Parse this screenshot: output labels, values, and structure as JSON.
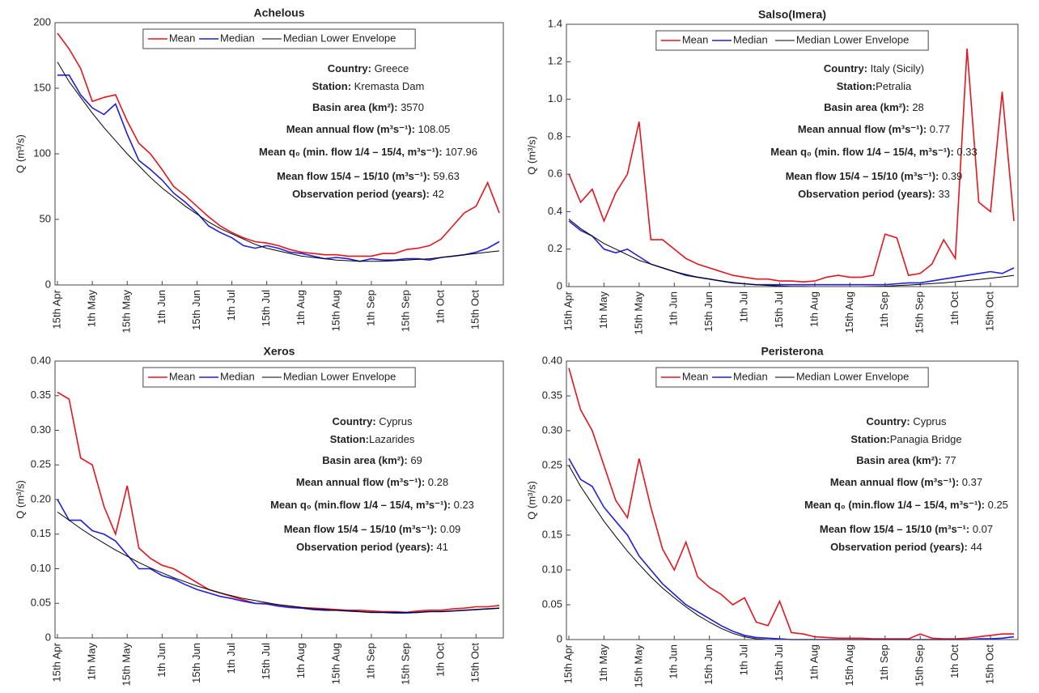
{
  "chart_data": [
    {
      "type": "line",
      "title": "Achelous",
      "ylabel": "Q (m³/s)",
      "legend": "top",
      "categories": [
        "15th Apr",
        null,
        null,
        "1th May",
        null,
        null,
        "15th May",
        null,
        null,
        "1th Jun",
        null,
        null,
        "15th Jun",
        null,
        null,
        "1th Jul",
        null,
        null,
        "15th Jul",
        null,
        null,
        "1th Aug",
        null,
        null,
        "15th Aug",
        null,
        null,
        "1th Sep",
        null,
        null,
        "15th Sep",
        null,
        null,
        "1th Oct",
        null,
        null,
        "15th Oct",
        null,
        null
      ],
      "ylim": [
        0,
        200
      ],
      "yticks": [
        0,
        50,
        100,
        150,
        200
      ],
      "series": [
        {
          "name": "Mean",
          "color": "#e8141c",
          "values": [
            192,
            180,
            165,
            140,
            143,
            145,
            125,
            108,
            100,
            88,
            75,
            68,
            60,
            52,
            45,
            40,
            36,
            33,
            32,
            30,
            27,
            25,
            24,
            23,
            23,
            22,
            22,
            22,
            24,
            24,
            27,
            28,
            30,
            35,
            45,
            55,
            60,
            78,
            55
          ]
        },
        {
          "name": "Median",
          "color": "#1f1fdd",
          "values": [
            160,
            160,
            145,
            135,
            130,
            138,
            115,
            95,
            88,
            80,
            70,
            63,
            55,
            45,
            40,
            36,
            30,
            28,
            30,
            28,
            25,
            24,
            22,
            20,
            21,
            20,
            18,
            20,
            19,
            19,
            20,
            20,
            19,
            21,
            22,
            23,
            25,
            28,
            33
          ]
        },
        {
          "name": "Median Lower Envelope",
          "color": "#000000",
          "values": [
            170,
            155,
            143,
            131,
            120,
            110,
            100,
            91,
            82,
            74,
            67,
            60,
            54,
            48,
            43,
            39,
            35,
            31,
            28,
            26,
            24,
            22,
            21,
            20,
            19,
            18.5,
            18,
            18,
            18,
            18.5,
            19,
            19.5,
            20,
            21,
            22,
            23,
            24,
            25,
            26
          ]
        }
      ],
      "annotations": [
        {
          "label": "Country:",
          "value": " Greece"
        },
        {
          "label": "Station:",
          "value": " Kremasta Dam"
        },
        {
          "label": "Basin area (km²):",
          "value": " 3570"
        },
        {
          "label": "Mean annual flow (m³s⁻¹):",
          "value": " 108.05"
        },
        {
          "label": "Mean q₀ (min. flow 1/4 – 15/4, m³s⁻¹):",
          "value": " 107.96"
        },
        {
          "label": "Mean flow 15/4 – 15/10 (m³s⁻¹):",
          "value": " 59.63"
        },
        {
          "label": "Observation period (years):",
          "value": " 42"
        }
      ]
    },
    {
      "type": "line",
      "title": "Salso(Imera)",
      "ylabel": "Q (m³/s)",
      "legend": "top",
      "categories": [
        "15th Apr",
        null,
        null,
        "1th May",
        null,
        null,
        "15th May",
        null,
        null,
        "1th Jun",
        null,
        null,
        "15th Jun",
        null,
        null,
        "1th Jul",
        null,
        null,
        "15th Jul",
        null,
        null,
        "1th Aug",
        null,
        null,
        "15th Aug",
        null,
        null,
        "1th Sep",
        null,
        null,
        "15th Sep",
        null,
        null,
        "1th Oct",
        null,
        null,
        "15th Oct",
        null,
        null
      ],
      "ylim": [
        0,
        1.4
      ],
      "yticks": [
        0,
        0.2,
        0.4,
        0.6,
        0.8,
        {
          "value": 1,
          "label": "1.0"
        },
        1.2,
        1.4
      ],
      "series": [
        {
          "name": "Mean",
          "color": "#e8141c",
          "values": [
            0.6,
            0.45,
            0.52,
            0.35,
            0.5,
            0.6,
            0.88,
            0.25,
            0.25,
            0.2,
            0.15,
            0.12,
            0.1,
            0.08,
            0.06,
            0.05,
            0.04,
            0.04,
            0.03,
            0.03,
            0.025,
            0.03,
            0.05,
            0.06,
            0.05,
            0.05,
            0.06,
            0.28,
            0.26,
            0.06,
            0.07,
            0.12,
            0.25,
            0.15,
            1.27,
            0.45,
            0.4,
            1.04,
            0.35
          ]
        },
        {
          "name": "Median",
          "color": "#1f1fdd",
          "values": [
            0.35,
            0.3,
            0.27,
            0.2,
            0.18,
            0.2,
            0.16,
            0.12,
            0.1,
            0.08,
            0.06,
            0.05,
            0.04,
            0.03,
            0.02,
            0.015,
            0.01,
            0.01,
            0.01,
            0.01,
            0.01,
            0.01,
            0.01,
            0.01,
            0.01,
            0.01,
            0.01,
            0.01,
            0.015,
            0.02,
            0.02,
            0.03,
            0.04,
            0.05,
            0.06,
            0.07,
            0.08,
            0.07,
            0.1
          ]
        },
        {
          "name": "Median Lower Envelope",
          "color": "#000000",
          "values": [
            0.36,
            0.31,
            0.27,
            0.23,
            0.2,
            0.17,
            0.14,
            0.12,
            0.1,
            0.08,
            0.065,
            0.05,
            0.04,
            0.03,
            0.022,
            0.015,
            0.01,
            0.006,
            0.003,
            0.001,
            0.001,
            0,
            0,
            0,
            0,
            0,
            0.001,
            0.002,
            0.005,
            0.008,
            0.012,
            0.016,
            0.02,
            0.026,
            0.032,
            0.038,
            0.045,
            0.052,
            0.06
          ]
        }
      ],
      "annotations": [
        {
          "label": "Country:",
          "value": " Italy (Sicily)"
        },
        {
          "label": "Station:",
          "value": "Petralia"
        },
        {
          "label": "Basin area (km²):",
          "value": " 28"
        },
        {
          "label": "Mean annual flow (m³s⁻¹):",
          "value": " 0.77"
        },
        {
          "label": "Mean q₀ (min. flow 1/4 – 15/4, m³s⁻¹):",
          "value": " 0.33"
        },
        {
          "label": "Mean flow 15/4 – 15/10 (m³s⁻¹):",
          "value": " 0.39"
        },
        {
          "label": "Observation period (years):",
          "value": " 33"
        }
      ]
    },
    {
      "type": "line",
      "title": "Xeros",
      "ylabel": "Q (m³/s)",
      "legend": "top",
      "categories": [
        "15th Apr",
        null,
        null,
        "1th May",
        null,
        null,
        "15th May",
        null,
        null,
        "1th Jun",
        null,
        null,
        "15th Jun",
        null,
        null,
        "1th Jul",
        null,
        null,
        "15th Jul",
        null,
        null,
        "1th Aug",
        null,
        null,
        "15th Aug",
        null,
        null,
        "1th Sep",
        null,
        null,
        "15th Sep",
        null,
        null,
        "1th Oct",
        null,
        null,
        "15th Oct",
        null,
        null
      ],
      "ylim": [
        0,
        0.4
      ],
      "yticks": [
        0,
        0.05,
        {
          "value": 0.1,
          "label": "0.10"
        },
        0.15,
        {
          "value": 0.2,
          "label": "0.20"
        },
        0.25,
        {
          "value": 0.3,
          "label": "0.30"
        },
        0.35,
        {
          "value": 0.4,
          "label": "0.40"
        }
      ],
      "series": [
        {
          "name": "Mean",
          "color": "#e8141c",
          "values": [
            0.355,
            0.345,
            0.26,
            0.25,
            0.19,
            0.15,
            0.22,
            0.13,
            0.115,
            0.105,
            0.1,
            0.09,
            0.08,
            0.07,
            0.065,
            0.06,
            0.055,
            0.05,
            0.05,
            0.048,
            0.046,
            0.044,
            0.043,
            0.042,
            0.041,
            0.04,
            0.04,
            0.039,
            0.038,
            0.038,
            0.037,
            0.039,
            0.04,
            0.04,
            0.042,
            0.043,
            0.045,
            0.045,
            0.047
          ]
        },
        {
          "name": "Median",
          "color": "#1f1fdd",
          "values": [
            0.2,
            0.17,
            0.17,
            0.155,
            0.15,
            0.14,
            0.12,
            0.1,
            0.1,
            0.09,
            0.085,
            0.077,
            0.07,
            0.065,
            0.06,
            0.057,
            0.053,
            0.05,
            0.049,
            0.046,
            0.044,
            0.043,
            0.041,
            0.04,
            0.04,
            0.039,
            0.038,
            0.037,
            0.037,
            0.036,
            0.036,
            0.037,
            0.038,
            0.038,
            0.039,
            0.04,
            0.041,
            0.042,
            0.043
          ]
        },
        {
          "name": "Median Lower Envelope",
          "color": "#000000",
          "values": [
            0.182,
            0.17,
            0.158,
            0.147,
            0.137,
            0.127,
            0.118,
            0.109,
            0.101,
            0.094,
            0.087,
            0.081,
            0.075,
            0.07,
            0.065,
            0.061,
            0.057,
            0.054,
            0.051,
            0.048,
            0.046,
            0.044,
            0.042,
            0.041,
            0.04,
            0.039,
            0.038,
            0.037,
            0.037,
            0.037,
            0.037,
            0.037,
            0.038,
            0.038,
            0.039,
            0.04,
            0.041,
            0.042,
            0.043
          ]
        }
      ],
      "annotations": [
        {
          "label": "Country:",
          "value": " Cyprus"
        },
        {
          "label": "Station:",
          "value": "Lazarides"
        },
        {
          "label": "Basin area (km²):",
          "value": " 69"
        },
        {
          "label": "Mean annual flow (m³s⁻¹):",
          "value": " 0.28"
        },
        {
          "label": "Mean q₀ (min.flow 1/4 – 15/4, m³s⁻¹):",
          "value": " 0.23"
        },
        {
          "label": "Mean flow 15/4 – 15/10 (m³s⁻¹):",
          "value": " 0.09"
        },
        {
          "label": "Observation period (years):",
          "value": " 41"
        }
      ]
    },
    {
      "type": "line",
      "title": "Peristerona",
      "ylabel": "Q (m³/s)",
      "legend": "top",
      "categories": [
        "15th Apr",
        null,
        null,
        "1th May",
        null,
        null,
        "15th May",
        null,
        null,
        "1th Jun",
        null,
        null,
        "15th Jun",
        null,
        null,
        "1th Jul",
        null,
        null,
        "15th Jul",
        null,
        null,
        "1th Aug",
        null,
        null,
        "15th Aug",
        null,
        null,
        "1th Sep",
        null,
        null,
        "15th Sep",
        null,
        null,
        "1th Oct",
        null,
        null,
        "15th Oct",
        null,
        null
      ],
      "ylim": [
        0,
        0.4
      ],
      "yticks": [
        0,
        0.05,
        {
          "value": 0.1,
          "label": "0.10"
        },
        0.15,
        {
          "value": 0.2,
          "label": "0.20"
        },
        0.25,
        {
          "value": 0.3,
          "label": "0.30"
        },
        0.35,
        {
          "value": 0.4,
          "label": "0.40"
        }
      ],
      "series": [
        {
          "name": "Mean",
          "color": "#e8141c",
          "values": [
            0.39,
            0.33,
            0.3,
            0.25,
            0.2,
            0.175,
            0.26,
            0.19,
            0.13,
            0.1,
            0.14,
            0.09,
            0.075,
            0.065,
            0.05,
            0.06,
            0.025,
            0.02,
            0.055,
            0.01,
            0.008,
            0.004,
            0.003,
            0.002,
            0.002,
            0.002,
            0.001,
            0.001,
            0.001,
            0.001,
            0.008,
            0.002,
            0.001,
            0.001,
            0.002,
            0.004,
            0.006,
            0.008,
            0.008
          ]
        },
        {
          "name": "Median",
          "color": "#1f1fdd",
          "values": [
            0.26,
            0.23,
            0.22,
            0.19,
            0.17,
            0.15,
            0.12,
            0.1,
            0.08,
            0.065,
            0.05,
            0.04,
            0.03,
            0.02,
            0.012,
            0.006,
            0.003,
            0.002,
            0.001,
            0,
            0,
            0,
            0,
            0,
            0,
            0,
            0,
            0,
            0,
            0,
            0,
            0,
            0,
            0,
            0,
            0.001,
            0.001,
            0.002,
            0.004
          ]
        },
        {
          "name": "Median Lower Envelope",
          "color": "#000000",
          "values": [
            0.25,
            0.22,
            0.195,
            0.17,
            0.148,
            0.127,
            0.108,
            0.09,
            0.074,
            0.06,
            0.047,
            0.035,
            0.025,
            0.016,
            0.009,
            0.004,
            0.001,
            0,
            0,
            0,
            0,
            0,
            0,
            0,
            0,
            0,
            0,
            0,
            0,
            0,
            0,
            0,
            0,
            0,
            0,
            0,
            0,
            0,
            0
          ]
        }
      ],
      "annotations": [
        {
          "label": "Country:",
          "value": " Cyprus"
        },
        {
          "label": "Station:",
          "value": "Panagia Bridge"
        },
        {
          "label": "Basin area (km²):",
          "value": " 77"
        },
        {
          "label": "Mean annual flow (m³s⁻¹):",
          "value": " 0.37"
        },
        {
          "label": "Mean q₀ (min.flow 1/4 – 15/4, m³s⁻¹):",
          "value": " 0.25"
        },
        {
          "label": "Mean flow 15/4 – 15/10 (m³s⁻¹:",
          "value": " 0.07"
        },
        {
          "label": "Observation period (years):",
          "value": " 44"
        }
      ]
    }
  ]
}
